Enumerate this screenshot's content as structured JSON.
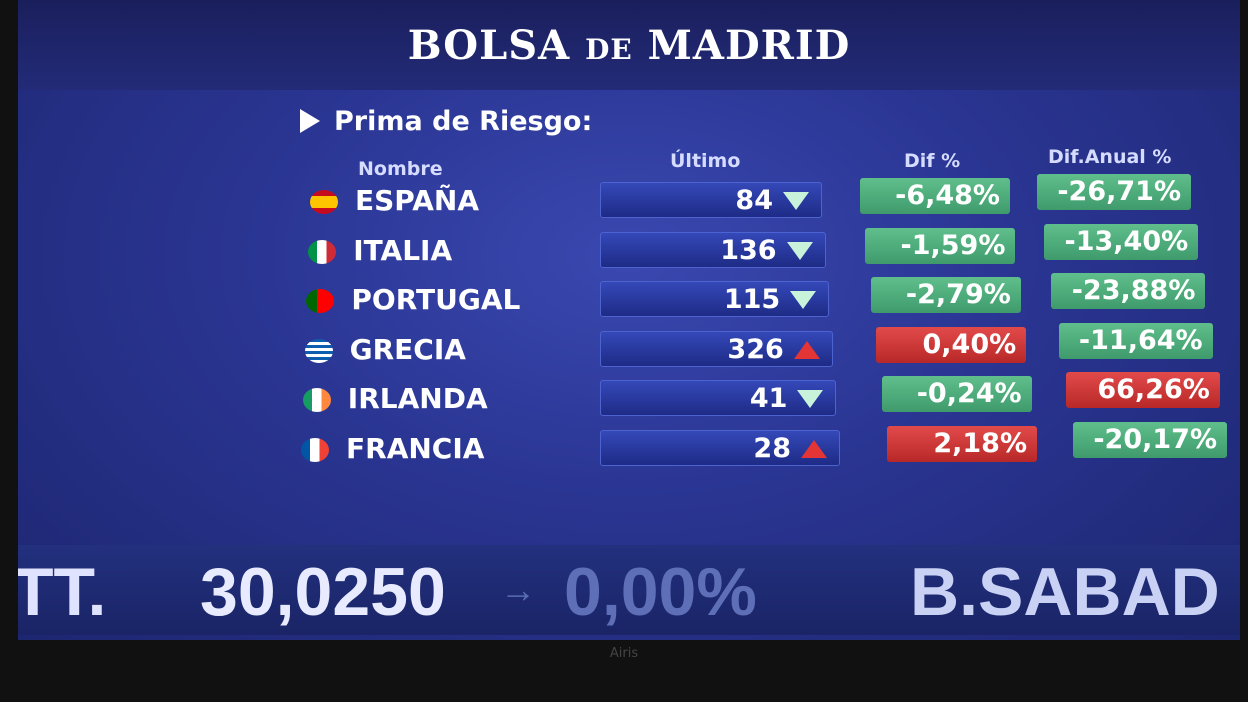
{
  "header": {
    "title_main_1": "BOLSA",
    "title_small": "DE",
    "title_main_2": "MADRID"
  },
  "section": {
    "title": "Prima de Riesgo:"
  },
  "table": {
    "columns": [
      "Nombre",
      "Último",
      "Dif %",
      "Dif.Anual %"
    ],
    "rows": [
      [
        "ESPAÑA",
        "84",
        "-6,48%",
        "-26,71%"
      ],
      [
        "ITALIA",
        "136",
        "-1,59%",
        "-13,40%"
      ],
      [
        "PORTUGAL",
        "115",
        "-2,79%",
        "-23,88%"
      ],
      [
        "GRECIA",
        "326",
        "0,40%",
        "-11,64%"
      ],
      [
        "IRLANDA",
        "41",
        "-0,24%",
        "66,26%"
      ],
      [
        "FRANCIA",
        "28",
        "2,18%",
        "-20,17%"
      ]
    ]
  },
  "ticker": {
    "items": [
      "TT.",
      "30,0250",
      "0,00%",
      "B.SABAD"
    ]
  },
  "monitor": {
    "brand": "Airis"
  }
}
